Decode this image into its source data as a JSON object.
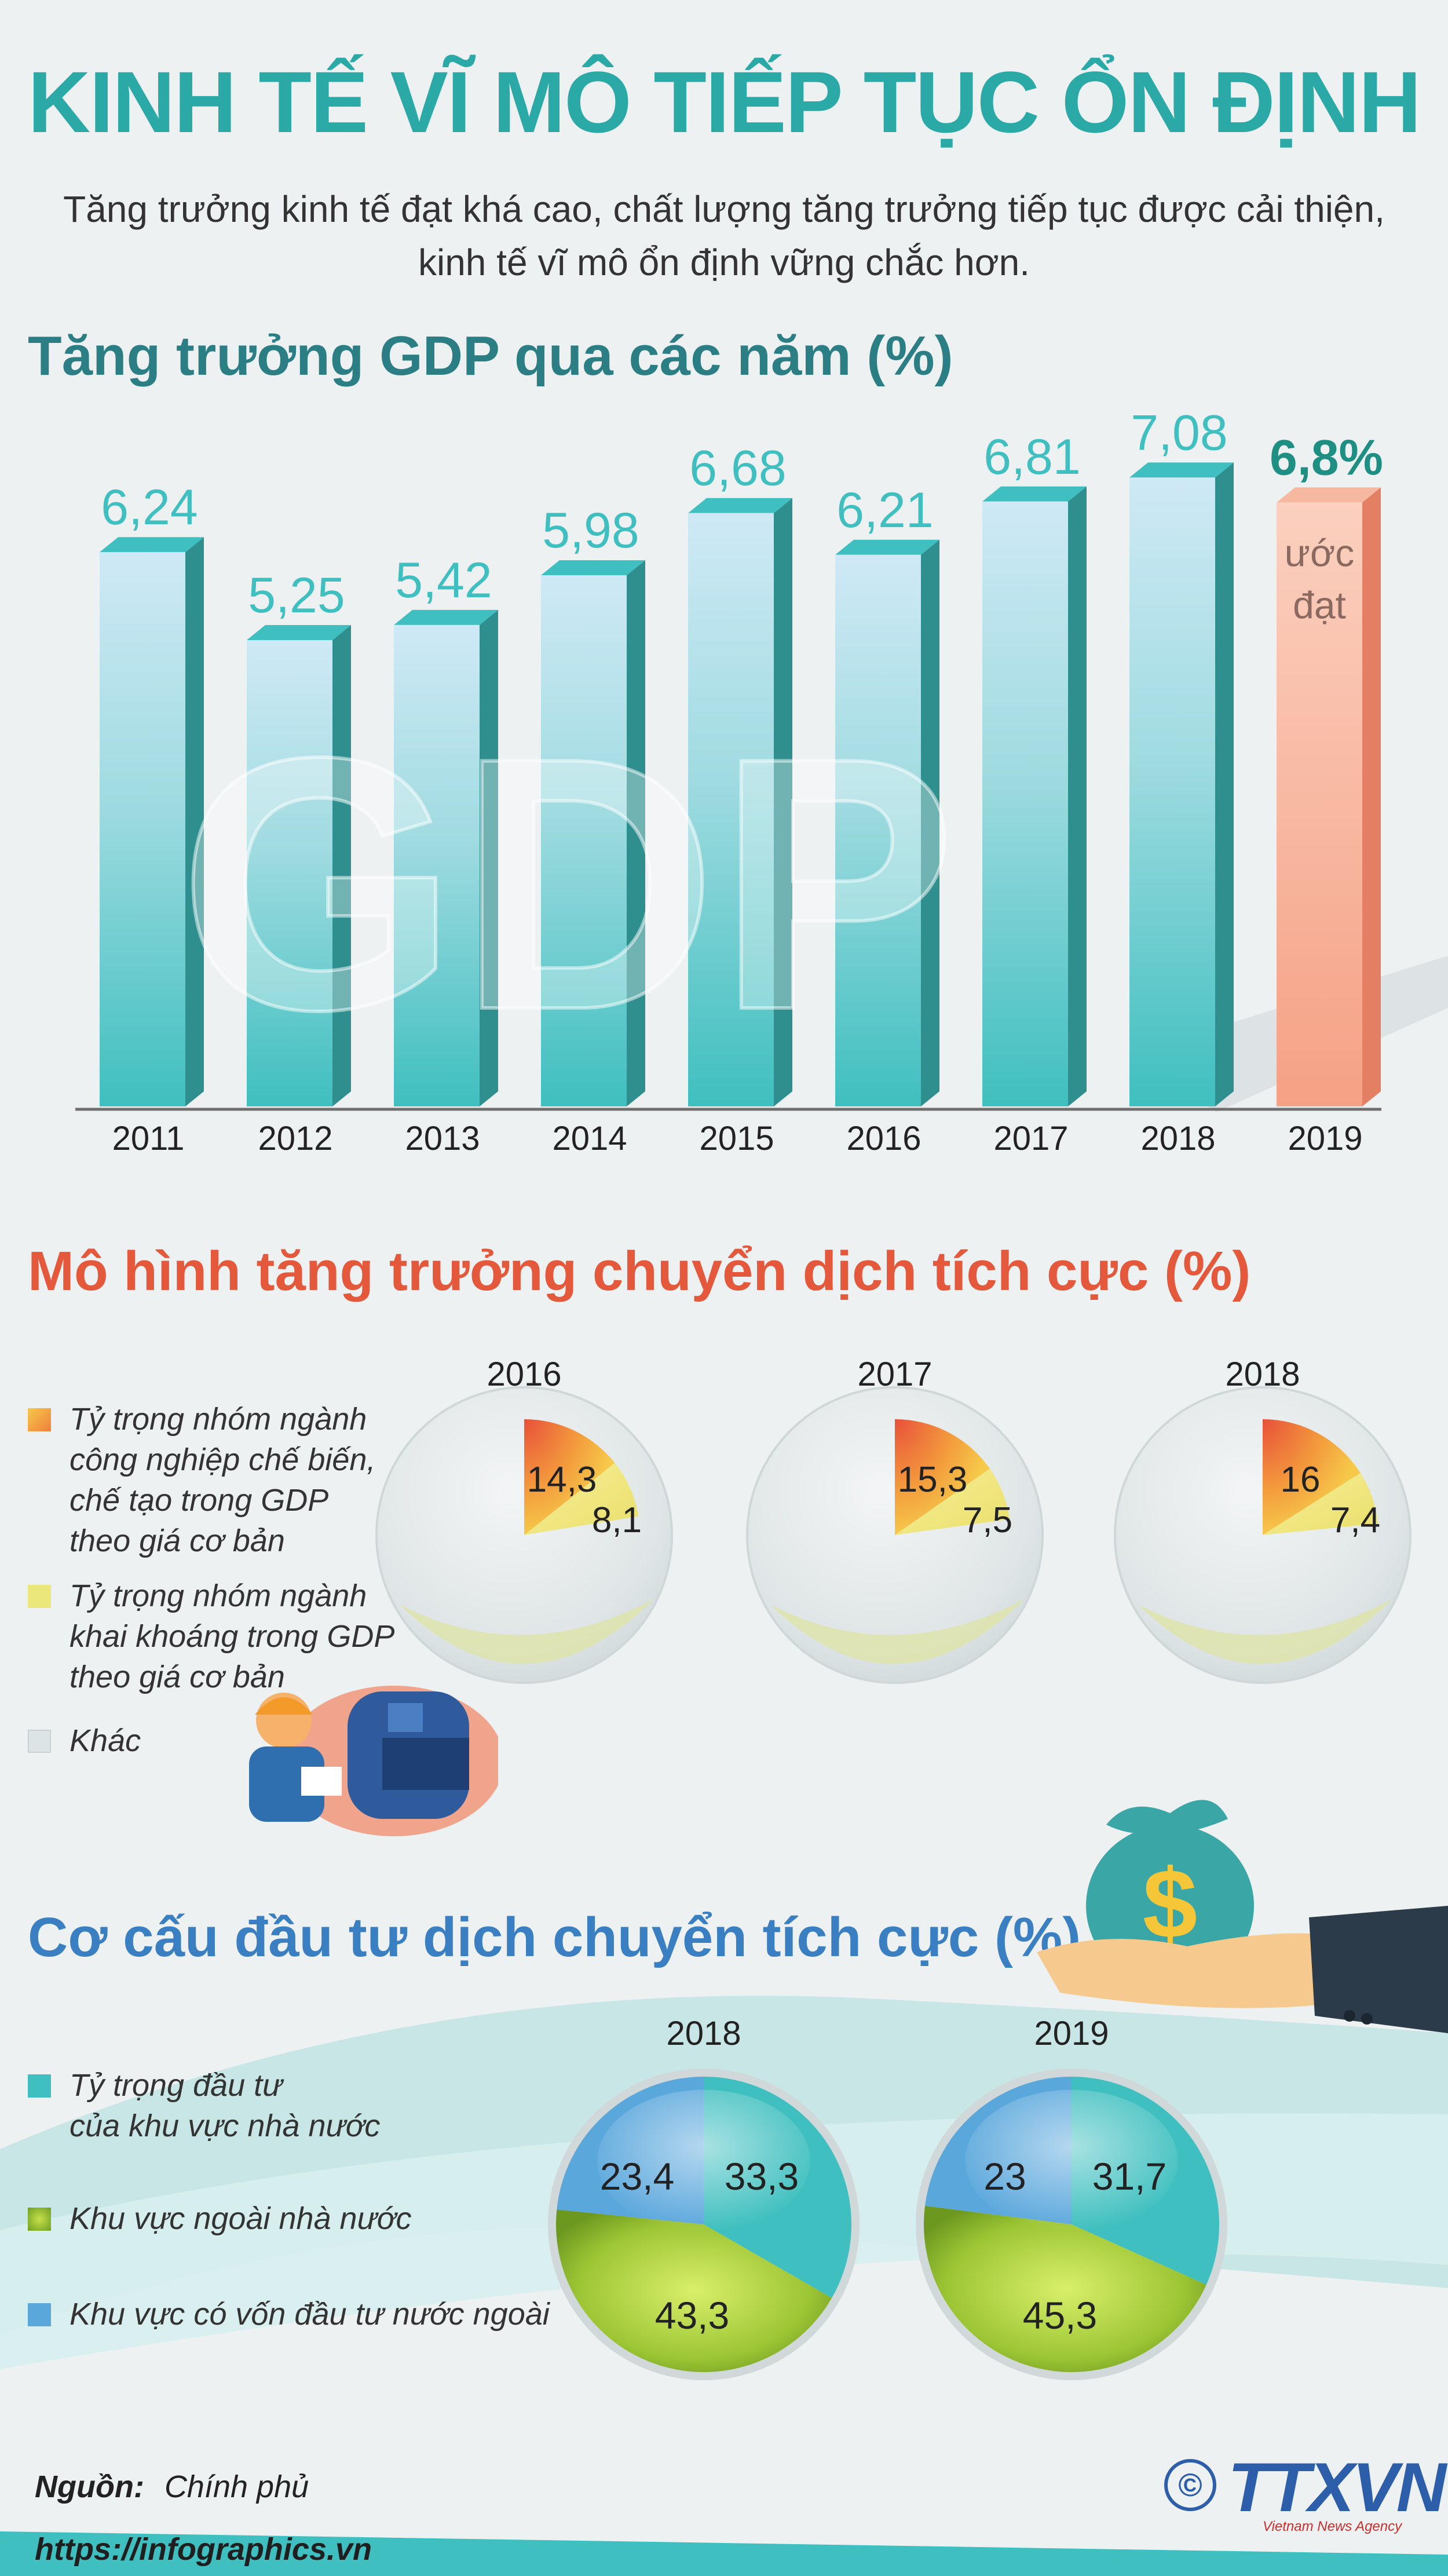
{
  "header": {
    "title": "KINH TẾ VĨ MÔ TIẾP TỤC ỔN ĐỊNH",
    "subtitle_line1": "Tăng trưởng kinh tế đạt khá cao, chất lượng tăng trưởng tiếp tục được cải thiện,",
    "subtitle_line2": "kinh tế vĩ mô ổn định vững chắc hơn."
  },
  "sections": {
    "gdp_heading": "Tăng trưởng GDP qua các năm (%)",
    "model_heading": "Mô hình tăng trưởng chuyển dịch tích cực (%)",
    "invest_heading": "Cơ cấu đầu tư dịch chuyển tích cực (%)"
  },
  "gdp_watermark": "GDP",
  "model_legend": {
    "manufacturing_line1": "Tỷ trọng nhóm ngành",
    "manufacturing_line2": "công nghiệp chế biến,",
    "manufacturing_line3": "chế tạo trong GDP",
    "manufacturing_line4": "theo giá cơ bản",
    "mining_line1": "Tỷ trọng nhóm ngành",
    "mining_line2": "khai khoáng trong GDP",
    "mining_line3": "theo giá cơ bản",
    "other": "Khác"
  },
  "invest_legend": {
    "state_line1": "Tỷ trọng đầu tư",
    "state_line2": "của khu vực nhà nước",
    "non_state": "Khu vực ngoài nhà nước",
    "fdi": "Khu vực có vốn đầu tư nước ngoài"
  },
  "footer": {
    "source_label": "Nguồn:",
    "source_value": "Chính phủ",
    "url": "https://infographics.vn",
    "agency": "TTXVN",
    "agency_sub": "Vietnam News Agency",
    "copyright": "©"
  },
  "colors": {
    "teal": "#3fbfbf",
    "estimate": "#f5a185",
    "orange": "#f39a3c",
    "yellow": "#f0e47a",
    "other": "#dde3e5",
    "blue": "#5aa7dc",
    "green": "#8dbb2e"
  },
  "chart_data": [
    {
      "type": "bar",
      "title": "Tăng trưởng GDP qua các năm (%)",
      "categories": [
        "2011",
        "2012",
        "2013",
        "2014",
        "2015",
        "2016",
        "2017",
        "2018",
        "2019"
      ],
      "values": [
        6.24,
        5.25,
        5.42,
        5.98,
        6.68,
        6.21,
        6.81,
        7.08,
        6.8
      ],
      "value_labels": [
        "6,24",
        "5,25",
        "5,42",
        "5,98",
        "6,68",
        "6,21",
        "6,81",
        "7,08",
        "6,8%"
      ],
      "estimate_note_line1": "ước",
      "estimate_note_line2": "đạt",
      "ylim": [
        0,
        7.5
      ]
    },
    {
      "type": "pie",
      "title": "Mô hình tăng trưởng chuyển dịch tích cực (%)",
      "charts": [
        {
          "year": "2016",
          "manufacturing": 14.3,
          "mining": 8.1,
          "labels": [
            "14,3",
            "8,1"
          ]
        },
        {
          "year": "2017",
          "manufacturing": 15.3,
          "mining": 7.5,
          "labels": [
            "15,3",
            "7,5"
          ]
        },
        {
          "year": "2018",
          "manufacturing": 16,
          "mining": 7.4,
          "labels": [
            "16",
            "7,4"
          ]
        }
      ]
    },
    {
      "type": "pie",
      "title": "Cơ cấu đầu tư dịch chuyển tích cực (%)",
      "charts": [
        {
          "year": "2018",
          "state": 33.3,
          "non_state": 43.3,
          "fdi": 23.4,
          "labels": [
            "33,3",
            "43,3",
            "23,4"
          ]
        },
        {
          "year": "2019",
          "state": 31.7,
          "non_state": 45.3,
          "fdi": 23,
          "labels": [
            "31,7",
            "45,3",
            "23"
          ]
        }
      ]
    }
  ]
}
